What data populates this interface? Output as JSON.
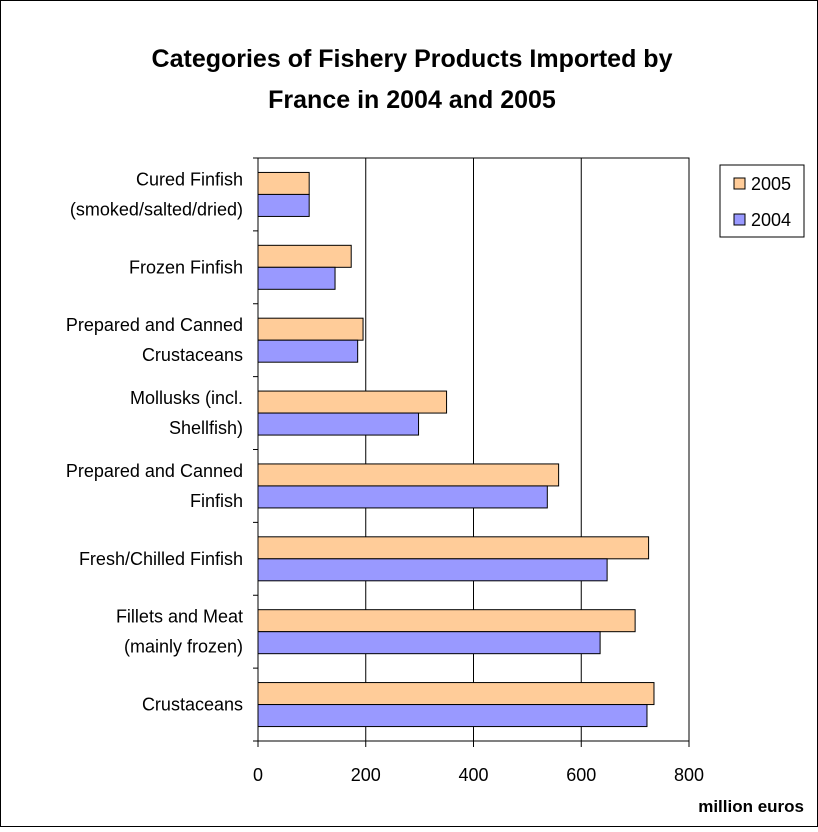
{
  "chart_data": {
    "type": "bar",
    "orientation": "horizontal",
    "title_lines": [
      "Categories of Fishery Products Imported by",
      "France in 2004 and 2005"
    ],
    "xlabel": "million euros",
    "ylabel": "",
    "xlim": [
      0,
      800
    ],
    "x_ticks": [
      "0",
      "200",
      "400",
      "600",
      "800"
    ],
    "grid": "vertical",
    "legend_position": "right",
    "categories": [
      {
        "lines": [
          "Cured Finfish",
          "(smoked/salted/dried)"
        ]
      },
      {
        "lines": [
          "Frozen Finfish"
        ]
      },
      {
        "lines": [
          "Prepared and Canned",
          "Crustaceans"
        ]
      },
      {
        "lines": [
          "Mollusks (incl.",
          "Shellfish)"
        ]
      },
      {
        "lines": [
          "Prepared and Canned",
          "Finfish"
        ]
      },
      {
        "lines": [
          "Fresh/Chilled Finfish"
        ]
      },
      {
        "lines": [
          "Fillets and Meat",
          "(mainly frozen)"
        ]
      },
      {
        "lines": [
          "Crustaceans"
        ]
      }
    ],
    "series": [
      {
        "name": "2005",
        "color": "#FFCC99",
        "values": [
          95,
          173,
          195,
          350,
          558,
          725,
          700,
          735
        ]
      },
      {
        "name": "2004",
        "color": "#9999FF",
        "values": [
          95,
          143,
          185,
          298,
          537,
          648,
          635,
          722
        ]
      }
    ]
  }
}
